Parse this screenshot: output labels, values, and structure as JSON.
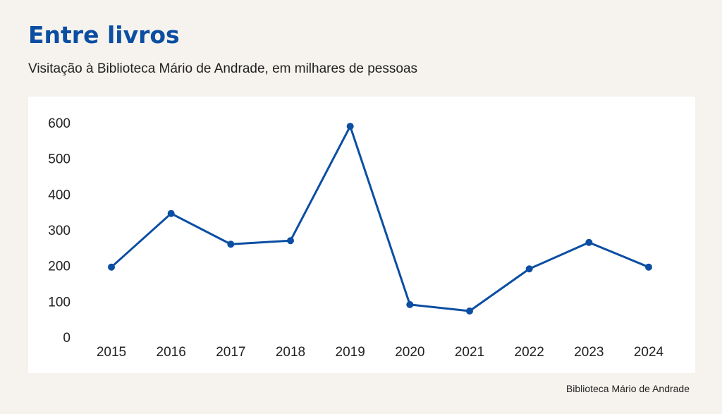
{
  "header": {
    "title": "Entre livros",
    "subtitle": "Visitação à Biblioteca Mário de Andrade, em milhares de pessoas"
  },
  "footer": {
    "source": "Biblioteca Mário de Andrade"
  },
  "colors": {
    "accent": "#0b4ea2",
    "line": "#0b4ea2",
    "background": "#f6f3ee",
    "panel": "#ffffff"
  },
  "chart_data": {
    "type": "line",
    "title": "Entre livros",
    "subtitle": "Visitação à Biblioteca Mário de Andrade, em milhares de pessoas",
    "xlabel": "",
    "ylabel": "",
    "x": [
      "2015",
      "2016",
      "2017",
      "2018",
      "2019",
      "2020",
      "2021",
      "2022",
      "2023",
      "2024"
    ],
    "series": [
      {
        "values": [
          196,
          346,
          260,
          270,
          590,
          91,
          73,
          191,
          265,
          196
        ]
      }
    ],
    "ylim": [
      0,
      600
    ],
    "yticks": [
      "0",
      "100",
      "200",
      "300",
      "400",
      "500",
      "600"
    ],
    "grid": false,
    "legend": "none",
    "markers": true
  }
}
